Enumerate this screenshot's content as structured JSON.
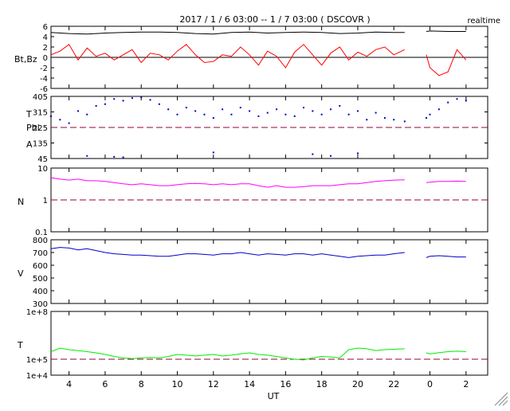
{
  "header": {
    "title": "2017 / 1 / 6   03:00 --  1 / 7  03:00 ( DSCOVR )",
    "mode_label": "realtime"
  },
  "x_axis": {
    "label": "UT",
    "tick_labels": [
      "4",
      "6",
      "8",
      "10",
      "12",
      "14",
      "16",
      "18",
      "20",
      "22",
      "0",
      "2"
    ],
    "data_gap": [
      22.6,
      23.8
    ]
  },
  "colors": {
    "bt": "#000000",
    "bz": "#ff0000",
    "phi": "#0000cc",
    "theta": "#0000cc",
    "density": "#ff00ff",
    "speed": "#0000cc",
    "temperature": "#00ee00",
    "reference": "#990033"
  },
  "chart_data": [
    {
      "type": "line",
      "panel": "magnetic-field",
      "ylabel": "Bt,Bz",
      "ylim": [
        -6,
        6
      ],
      "yticks": [
        "6",
        "4",
        "2",
        "0",
        "-2",
        "-4",
        "-6"
      ],
      "reference_line": 0,
      "series": [
        {
          "key": "bt",
          "x": [
            3,
            4,
            5,
            6,
            7,
            8,
            9,
            10,
            11,
            12,
            13,
            14,
            15,
            16,
            17,
            18,
            19,
            20,
            21,
            22,
            22.6,
            23.8,
            24,
            25,
            26
          ],
          "values": [
            4.8,
            4.6,
            4.5,
            4.7,
            4.8,
            4.9,
            4.9,
            4.8,
            4.6,
            4.5,
            4.8,
            4.9,
            4.7,
            4.8,
            4.9,
            4.8,
            4.6,
            4.7,
            4.9,
            4.8,
            4.8,
            5.0,
            5.1,
            5.0,
            5.0
          ]
        },
        {
          "key": "bz",
          "x": [
            3,
            3.5,
            4,
            4.5,
            5,
            5.5,
            6,
            6.5,
            7,
            7.5,
            8,
            8.5,
            9,
            9.5,
            10,
            10.5,
            11,
            11.5,
            12,
            12.5,
            13,
            13.5,
            14,
            14.5,
            15,
            15.5,
            16,
            16.5,
            17,
            17.5,
            18,
            18.5,
            19,
            19.5,
            20,
            20.5,
            21,
            21.5,
            22,
            22.6,
            23.8,
            24,
            24.5,
            25,
            25.5,
            26
          ],
          "values": [
            0.5,
            1.2,
            2.5,
            -0.5,
            1.8,
            0.2,
            0.8,
            -0.5,
            0.5,
            1.5,
            -1.0,
            0.8,
            0.5,
            -0.5,
            1.2,
            2.5,
            0.5,
            -1.0,
            -0.8,
            0.5,
            0.2,
            2.0,
            0.5,
            -1.5,
            1.2,
            0.2,
            -2.0,
            1.0,
            2.5,
            0.5,
            -1.5,
            0.8,
            2.0,
            -0.5,
            1.0,
            0.2,
            1.5,
            2.0,
            0.5,
            1.5,
            0.5,
            -2.0,
            -3.5,
            -2.8,
            1.5,
            -0.5
          ]
        }
      ]
    },
    {
      "type": "scatter",
      "panel": "angles",
      "ylabel": "T",
      "ylabel_lines": [
        "T",
        "Phi",
        "A"
      ],
      "ylim": [
        45,
        405
      ],
      "yticks": [
        "405",
        "315",
        "225",
        "135",
        "45"
      ],
      "reference_line": 225,
      "series": [
        {
          "key": "phi",
          "x": [
            3,
            3.5,
            4,
            4.5,
            5,
            5.5,
            6,
            6.5,
            7,
            7.5,
            8,
            8.5,
            9,
            9.5,
            10,
            10.5,
            11,
            11.5,
            12,
            12.5,
            13,
            13.5,
            14,
            14.5,
            15,
            15.5,
            16,
            16.5,
            17,
            17.5,
            18,
            18.5,
            19,
            19.5,
            20,
            20.5,
            21,
            21.5,
            22,
            22.6,
            23.8,
            24,
            24.5,
            25,
            25.5,
            26
          ],
          "values": [
            290,
            270,
            250,
            320,
            300,
            350,
            360,
            390,
            380,
            395,
            400,
            385,
            360,
            330,
            300,
            340,
            320,
            300,
            280,
            330,
            300,
            340,
            320,
            290,
            310,
            330,
            300,
            290,
            340,
            320,
            300,
            330,
            350,
            300,
            320,
            270,
            310,
            280,
            270,
            260,
            280,
            300,
            330,
            370,
            390,
            380
          ]
        },
        {
          "key": "theta",
          "x": [
            5,
            6.5,
            7,
            12,
            17.5,
            18.5,
            20
          ],
          "values": [
            60,
            55,
            52,
            80,
            70,
            60,
            75
          ]
        }
      ]
    },
    {
      "type": "line",
      "panel": "density",
      "ylabel": "N",
      "yscale": "log",
      "ylim": [
        0.1,
        10
      ],
      "yticks": [
        "10",
        "1",
        "0.1"
      ],
      "reference_line": 1,
      "series": [
        {
          "key": "density",
          "x": [
            3,
            3.5,
            4,
            4.5,
            5,
            5.5,
            6,
            6.5,
            7,
            7.5,
            8,
            8.5,
            9,
            9.5,
            10,
            10.5,
            11,
            11.5,
            12,
            12.5,
            13,
            13.5,
            14,
            14.5,
            15,
            15.5,
            16,
            16.5,
            17,
            17.5,
            18,
            18.5,
            19,
            19.5,
            20,
            20.5,
            21,
            21.5,
            22,
            22.6,
            23.8,
            24,
            24.5,
            25,
            25.5,
            26
          ],
          "values": [
            5.0,
            4.5,
            4.2,
            4.5,
            4.0,
            4.0,
            3.8,
            3.5,
            3.2,
            3.0,
            3.2,
            3.0,
            2.8,
            2.8,
            3.0,
            3.2,
            3.3,
            3.2,
            3.0,
            3.2,
            3.0,
            3.2,
            3.2,
            2.8,
            2.5,
            2.8,
            2.5,
            2.5,
            2.6,
            2.8,
            2.8,
            2.8,
            3.0,
            3.2,
            3.2,
            3.5,
            3.8,
            4.0,
            4.2,
            4.3,
            3.5,
            3.6,
            3.8,
            3.8,
            3.9,
            3.8
          ]
        }
      ]
    },
    {
      "type": "line",
      "panel": "speed",
      "ylabel": "V",
      "ylim": [
        300,
        800
      ],
      "yticks": [
        "800",
        "700",
        "600",
        "500",
        "400",
        "300"
      ],
      "series": [
        {
          "key": "speed",
          "x": [
            3,
            3.5,
            4,
            4.5,
            5,
            5.5,
            6,
            6.5,
            7,
            7.5,
            8,
            8.5,
            9,
            9.5,
            10,
            10.5,
            11,
            11.5,
            12,
            12.5,
            13,
            13.5,
            14,
            14.5,
            15,
            15.5,
            16,
            16.5,
            17,
            17.5,
            18,
            18.5,
            19,
            19.5,
            20,
            20.5,
            21,
            21.5,
            22,
            22.6,
            23.8,
            24,
            24.5,
            25,
            25.5,
            26
          ],
          "values": [
            730,
            740,
            735,
            720,
            730,
            715,
            700,
            690,
            685,
            680,
            680,
            675,
            670,
            670,
            680,
            690,
            690,
            685,
            680,
            690,
            690,
            700,
            690,
            680,
            690,
            685,
            680,
            690,
            690,
            680,
            690,
            680,
            670,
            660,
            670,
            675,
            680,
            680,
            690,
            700,
            660,
            670,
            675,
            670,
            665,
            665
          ]
        }
      ]
    },
    {
      "type": "line",
      "panel": "temperature",
      "ylabel": "T",
      "yscale": "log",
      "ylim": [
        10000,
        100000000
      ],
      "yticks": [
        "1e+8",
        "1e+5",
        "1e+4"
      ],
      "reference_line": 100000,
      "series": [
        {
          "key": "temperature",
          "x": [
            3,
            3.5,
            4,
            4.5,
            5,
            5.5,
            6,
            6.5,
            7,
            7.5,
            8,
            8.5,
            9,
            9.5,
            10,
            10.5,
            11,
            11.5,
            12,
            12.5,
            13,
            13.5,
            14,
            14.5,
            15,
            15.5,
            16,
            16.5,
            17,
            17.5,
            18,
            18.5,
            19,
            19.5,
            20,
            20.5,
            21,
            21.5,
            22,
            22.6,
            23.8,
            24,
            24.5,
            25,
            25.5,
            26
          ],
          "values": [
            300000,
            500000,
            400000,
            350000,
            300000,
            250000,
            200000,
            150000,
            120000,
            110000,
            120000,
            130000,
            120000,
            150000,
            200000,
            180000,
            160000,
            180000,
            200000,
            160000,
            180000,
            220000,
            250000,
            200000,
            180000,
            150000,
            120000,
            100000,
            90000,
            120000,
            150000,
            140000,
            120000,
            400000,
            500000,
            450000,
            350000,
            400000,
            420000,
            450000,
            250000,
            220000,
            260000,
            300000,
            320000,
            300000
          ]
        }
      ]
    }
  ]
}
